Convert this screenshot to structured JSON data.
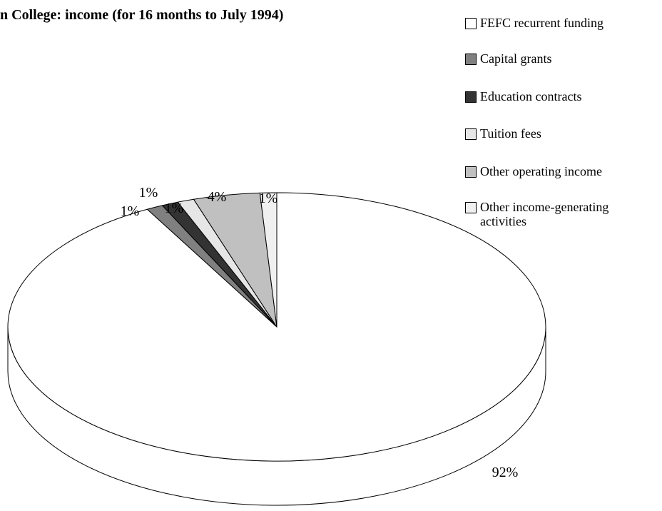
{
  "chart_data": {
    "type": "pie",
    "title": "n College: income (for 16 months to July 1994)",
    "categories": [
      "FEFC recurrent funding",
      "Capital grants",
      "Education contracts",
      "Tuition fees",
      "Other operating income",
      "Other income-generating activities"
    ],
    "values": [
      92,
      1,
      1,
      1,
      4,
      1
    ],
    "value_labels": [
      "92%",
      "1%",
      "1%",
      "1%",
      "4%",
      "1%"
    ],
    "colors": [
      "#ffffff",
      "#808080",
      "#333333",
      "#e6e6e6",
      "#c0c0c0",
      "#f0f0f0"
    ],
    "legend": "right"
  }
}
